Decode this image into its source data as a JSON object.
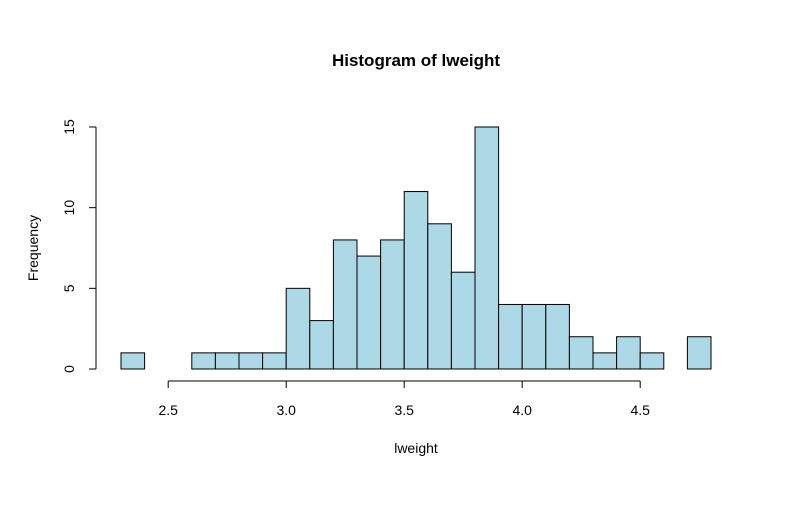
{
  "chart_data": {
    "type": "bar",
    "title": "Histogram of lweight",
    "xlabel": "lweight",
    "ylabel": "Frequency",
    "bar_color": "#add8e6",
    "bin_edges": [
      2.3,
      2.4,
      2.5,
      2.6,
      2.7,
      2.8,
      2.9,
      3.0,
      3.1,
      3.2,
      3.3,
      3.4,
      3.5,
      3.6,
      3.7,
      3.8,
      3.9,
      4.0,
      4.1,
      4.2,
      4.3,
      4.4,
      4.5,
      4.6,
      4.7,
      4.8
    ],
    "values": [
      1,
      0,
      0,
      1,
      1,
      1,
      1,
      5,
      3,
      8,
      7,
      8,
      11,
      9,
      6,
      15,
      4,
      4,
      4,
      2,
      1,
      2,
      1,
      0,
      2
    ],
    "xlim": [
      2.3,
      4.8
    ],
    "ylim": [
      0,
      15
    ],
    "x_ticks": [
      "2.5",
      "3.0",
      "3.5",
      "4.0",
      "4.5"
    ],
    "y_ticks": [
      "0",
      "5",
      "10",
      "15"
    ],
    "grid": false
  }
}
